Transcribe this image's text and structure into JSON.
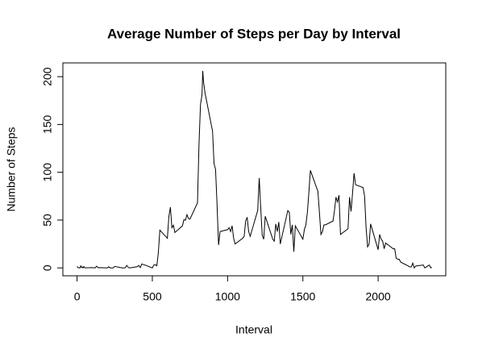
{
  "chart_data": {
    "type": "line",
    "title": "Average Number of Steps per Day by Interval",
    "x_label": "Interval",
    "y_label": "Number of Steps",
    "x": [
      0,
      5,
      10,
      15,
      20,
      25,
      30,
      35,
      40,
      45,
      50,
      55,
      100,
      110,
      120,
      130,
      140,
      150,
      200,
      210,
      220,
      230,
      240,
      250,
      300,
      310,
      320,
      330,
      340,
      350,
      400,
      410,
      420,
      430,
      440,
      450,
      500,
      510,
      520,
      530,
      540,
      550,
      600,
      610,
      620,
      630,
      640,
      650,
      700,
      710,
      720,
      730,
      740,
      750,
      800,
      810,
      820,
      830,
      835,
      840,
      850,
      900,
      910,
      920,
      930,
      940,
      950,
      1000,
      1010,
      1020,
      1030,
      1040,
      1050,
      1100,
      1110,
      1120,
      1130,
      1140,
      1150,
      1200,
      1210,
      1220,
      1230,
      1240,
      1250,
      1300,
      1310,
      1320,
      1330,
      1340,
      1350,
      1400,
      1410,
      1420,
      1430,
      1440,
      1450,
      1500,
      1510,
      1520,
      1530,
      1540,
      1550,
      1600,
      1610,
      1620,
      1630,
      1640,
      1650,
      1700,
      1710,
      1720,
      1730,
      1740,
      1750,
      1800,
      1810,
      1820,
      1830,
      1840,
      1850,
      1900,
      1910,
      1920,
      1930,
      1940,
      1950,
      2000,
      2010,
      2020,
      2030,
      2040,
      2050,
      2100,
      2110,
      2120,
      2130,
      2140,
      2150,
      2200,
      2210,
      2220,
      2230,
      2240,
      2250,
      2300,
      2310,
      2320,
      2330,
      2340,
      2350,
      2355
    ],
    "series": [
      {
        "name": "steps",
        "color": "#000000",
        "values": [
          1.7,
          0.3,
          0.1,
          0.2,
          0.1,
          2.1,
          0.5,
          0.9,
          0,
          1.5,
          0.3,
          0.1,
          0.3,
          0.2,
          0,
          1.8,
          0.2,
          0.3,
          0,
          1.1,
          0,
          0,
          0,
          1.5,
          0,
          0,
          0.2,
          2.6,
          0.5,
          0,
          1.2,
          2.6,
          0.3,
          4.1,
          3.5,
          3.1,
          0,
          3,
          3.3,
          2.2,
          16,
          39.5,
          31,
          53.8,
          63.5,
          42,
          44.6,
          37,
          44,
          50.5,
          49.9,
          55.7,
          51.6,
          51,
          68,
          129,
          171,
          181,
          206,
          195,
          183,
          143,
          109,
          103,
          66,
          24,
          38,
          40,
          42,
          38,
          44,
          31,
          25,
          31,
          33,
          49,
          53,
          38,
          33,
          60,
          94,
          63,
          34,
          30,
          54,
          30,
          28,
          46,
          38,
          48,
          25,
          60,
          58,
          35,
          45,
          17,
          44,
          30,
          40,
          45,
          58,
          79,
          102,
          80,
          58,
          35,
          38,
          45,
          45,
          49,
          60,
          74,
          69,
          76,
          35,
          41,
          74,
          59,
          78,
          99,
          87,
          84,
          75,
          42,
          22,
          25,
          46,
          19,
          35,
          30,
          28,
          20,
          26,
          20,
          20,
          10,
          9,
          9,
          6,
          2,
          1,
          1,
          5,
          0,
          2,
          3,
          0,
          1,
          2,
          3,
          0,
          1
        ]
      }
    ],
    "xlim": [
      -94.2,
      2449.2
    ],
    "ylim": [
      -8.25,
      214.4
    ],
    "xticks": [
      0,
      500,
      1000,
      1500,
      2000
    ],
    "yticks": [
      0,
      50,
      100,
      150,
      200
    ]
  }
}
